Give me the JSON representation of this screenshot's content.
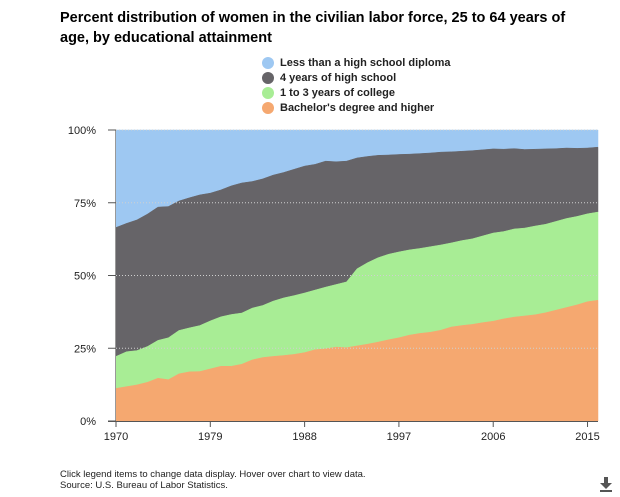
{
  "title": "Percent distribution of women in the civilian labor force, 25 to 64 years of age, by educational attainment",
  "footer": {
    "hint": "Click legend items to change data display. Hover over chart to view data.",
    "source": "Source: U.S. Bureau of Labor Statistics."
  },
  "icons": {
    "download": "download-arrow-icon"
  },
  "chart_data": {
    "type": "area",
    "stacked": true,
    "title": "Percent distribution of women in the civilian labor force, 25 to 64 years of age, by educational attainment",
    "xlabel": "",
    "ylabel": "",
    "xlim": [
      1970,
      2016
    ],
    "ylim": [
      0,
      100
    ],
    "x_ticks": [
      1970,
      1979,
      1988,
      1997,
      2006,
      2015
    ],
    "y_ticks": [
      0,
      25,
      50,
      75,
      100
    ],
    "y_tick_labels": [
      "0%",
      "25%",
      "50%",
      "75%",
      "100%"
    ],
    "grid": "horizontal dotted",
    "legend_position": "top-center",
    "x": [
      1970,
      1971,
      1972,
      1973,
      1974,
      1975,
      1976,
      1977,
      1978,
      1979,
      1980,
      1981,
      1982,
      1983,
      1984,
      1985,
      1986,
      1987,
      1988,
      1989,
      1990,
      1991,
      1992,
      1993,
      1994,
      1995,
      1996,
      1997,
      1998,
      1999,
      2000,
      2001,
      2002,
      2003,
      2004,
      2005,
      2006,
      2007,
      2008,
      2009,
      2010,
      2011,
      2012,
      2013,
      2014,
      2015,
      2016
    ],
    "series": [
      {
        "name": "Bachelor's degree and higher",
        "color": "#f5a870",
        "values": [
          11.2,
          11.8,
          12.4,
          13.3,
          14.7,
          14.2,
          16.2,
          16.9,
          17.0,
          17.9,
          18.8,
          18.8,
          19.5,
          21.0,
          21.8,
          22.2,
          22.5,
          22.9,
          23.5,
          24.5,
          24.8,
          25.4,
          25.2,
          25.8,
          26.4,
          27.1,
          27.9,
          28.6,
          29.5,
          30.1,
          30.5,
          31.2,
          32.3,
          32.8,
          33.2,
          33.8,
          34.3,
          35.1,
          35.7,
          36.1,
          36.5,
          37.2,
          38.1,
          39.0,
          39.9,
          41.0,
          41.5
        ]
      },
      {
        "name": "1 to 3 years of college",
        "color": "#a8ed95",
        "values": [
          11.0,
          12.0,
          11.8,
          12.3,
          13.0,
          14.4,
          14.9,
          15.1,
          15.8,
          16.5,
          17.0,
          17.8,
          17.6,
          17.8,
          17.9,
          19.0,
          19.8,
          20.2,
          20.5,
          20.5,
          21.2,
          21.5,
          22.6,
          26.5,
          28.0,
          29.0,
          29.4,
          29.5,
          29.3,
          29.2,
          29.4,
          29.3,
          28.9,
          29.2,
          29.4,
          29.8,
          30.3,
          30.0,
          30.3,
          30.2,
          30.5,
          30.4,
          30.5,
          30.6,
          30.4,
          30.2,
          30.3
        ]
      },
      {
        "name": "4 years of high school",
        "color": "#666468",
        "values": [
          44.3,
          44.1,
          44.9,
          45.5,
          45.8,
          45.1,
          44.5,
          44.7,
          44.9,
          43.9,
          43.6,
          44.2,
          44.7,
          43.5,
          43.5,
          43.3,
          43.1,
          43.4,
          43.6,
          43.2,
          43.3,
          42.2,
          41.5,
          38.1,
          36.5,
          35.2,
          34.1,
          33.5,
          32.9,
          32.6,
          32.2,
          31.9,
          31.3,
          30.7,
          30.3,
          29.6,
          28.9,
          28.3,
          27.6,
          27.0,
          26.4,
          25.9,
          25.0,
          24.2,
          23.4,
          22.6,
          22.3
        ]
      },
      {
        "name": "Less than a high school diploma",
        "color": "#9ec8f2",
        "values": [
          33.5,
          32.1,
          30.9,
          28.9,
          26.5,
          26.3,
          24.4,
          23.3,
          22.3,
          21.7,
          20.6,
          19.2,
          18.2,
          17.7,
          16.8,
          15.5,
          14.6,
          13.5,
          12.4,
          11.8,
          10.7,
          10.9,
          10.7,
          9.6,
          9.1,
          8.7,
          8.6,
          8.4,
          8.3,
          8.1,
          7.9,
          7.6,
          7.5,
          7.3,
          7.1,
          6.8,
          6.5,
          6.6,
          6.4,
          6.7,
          6.6,
          6.5,
          6.4,
          6.2,
          6.3,
          6.2,
          5.9
        ]
      }
    ],
    "legend_order": [
      "Less than a high school diploma",
      "4 years of high school",
      "1 to 3 years of college",
      "Bachelor's degree and higher"
    ]
  }
}
